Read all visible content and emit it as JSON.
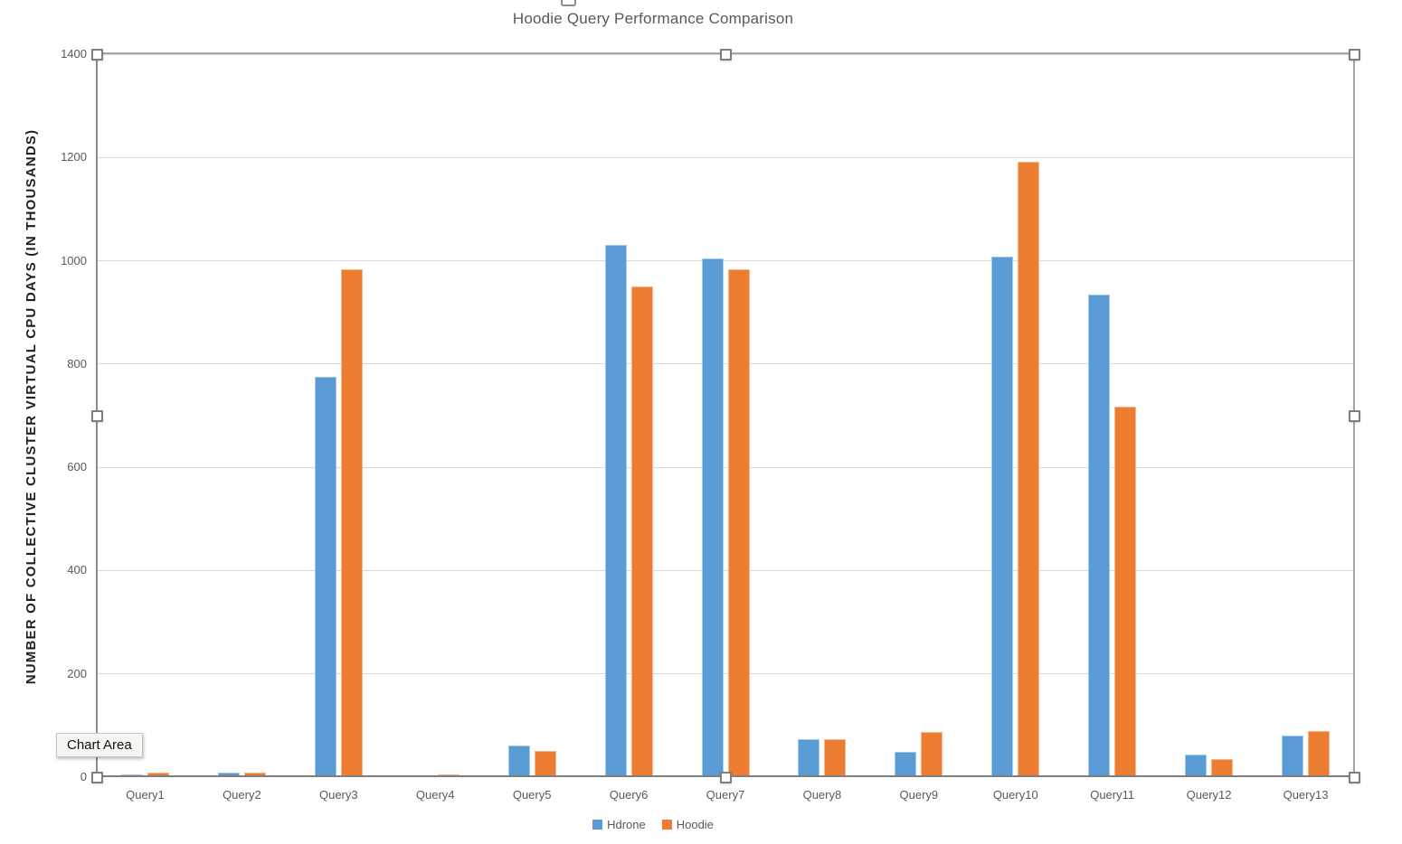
{
  "chart": {
    "title": "Hoodie Query Performance Comparison",
    "y_axis_title": "NUMBER OF COLLECTIVE CLUSTER VIRTUAL CPU DAYS (IN THOUSANDS)",
    "tooltip": "Chart Area"
  },
  "chart_data": {
    "type": "bar",
    "title": "Hoodie Query Performance Comparison",
    "xlabel": "",
    "ylabel": "NUMBER OF COLLECTIVE CLUSTER VIRTUAL CPU DAYS (IN THOUSANDS)",
    "categories": [
      "Query1",
      "Query2",
      "Query3",
      "Query4",
      "Query5",
      "Query6",
      "Query7",
      "Query8",
      "Query9",
      "Query10",
      "Query11",
      "Query12",
      "Query13"
    ],
    "series": [
      {
        "name": "Hdrone",
        "color": "#5B9BD5",
        "values": [
          5,
          9,
          776,
          4,
          62,
          1030,
          1004,
          73,
          49,
          1008,
          935,
          43,
          81
        ]
      },
      {
        "name": "Hoodie",
        "color": "#ED7D31",
        "values": [
          9,
          9,
          984,
          5,
          50,
          950,
          984,
          74,
          87,
          1192,
          717,
          35,
          90
        ]
      }
    ],
    "ylim": [
      0,
      1400
    ],
    "ytick_step": 200,
    "grid": true,
    "legend_position": "bottom",
    "selection_state": "plot-area-selected"
  }
}
